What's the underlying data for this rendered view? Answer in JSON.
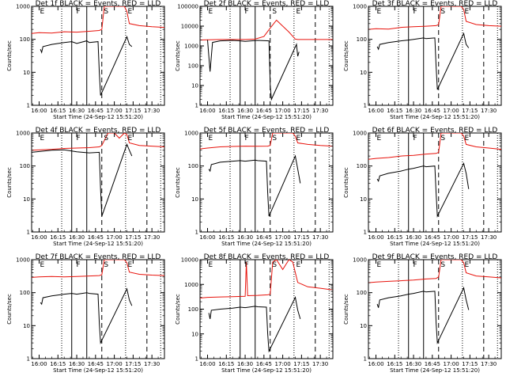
{
  "chart_data": [
    {
      "type": "line",
      "title": "Det 1f BLACK = Events, RED = LLD",
      "xlabel": "Start Time (24-Sep-12 15:51:20)",
      "ylabel": "Counts/sec",
      "y_scale": "log",
      "ylim": [
        1,
        1000
      ],
      "yticks": [
        1,
        10,
        100,
        1000
      ],
      "xticks": [
        "16:00",
        "16:15",
        "16:30",
        "16:45",
        "17:00",
        "17:15",
        "17:30"
      ],
      "xlim_min": [
        -6,
        100
      ],
      "dotted_x": [
        18,
        69,
        97
      ],
      "solid_x": [
        26,
        38
      ],
      "dashed_x": [
        50,
        86
      ],
      "segment_labels": [
        {
          "text": "E",
          "x": 0
        },
        {
          "text": "F",
          "x": 29
        },
        {
          "text": "S",
          "x": 51
        },
        {
          "text": "E",
          "x": 70
        }
      ],
      "series": [
        {
          "color": "red",
          "x": [
            -6,
            0,
            10,
            20,
            30,
            40,
            48,
            50,
            52,
            68,
            70,
            72,
            80,
            90,
            100
          ],
          "y": [
            150,
            160,
            155,
            170,
            165,
            175,
            185,
            200,
            1000,
            1000,
            700,
            300,
            260,
            240,
            230
          ]
        },
        {
          "color": "black",
          "x": [
            1,
            2,
            3,
            10,
            20,
            26,
            30,
            38,
            40,
            47,
            48,
            49,
            70,
            72,
            74
          ],
          "y": [
            50,
            40,
            60,
            70,
            80,
            85,
            75,
            90,
            80,
            85,
            10,
            2,
            120,
            70,
            60
          ]
        }
      ]
    },
    {
      "type": "line",
      "title": "Det 2f BLACK = Events, RED = LLD",
      "xlabel": "Start Time (24-Sep-12 15:51:20)",
      "ylabel": "Counts/sec",
      "y_scale": "log",
      "ylim": [
        1,
        100000
      ],
      "yticks": [
        1,
        10,
        100,
        1000,
        10000,
        100000
      ],
      "xticks": [
        "16:00",
        "16:15",
        "16:30",
        "16:45",
        "17:00",
        "17:15",
        "17:30"
      ],
      "xlim_min": [
        -6,
        100
      ],
      "dotted_x": [
        18,
        69,
        97
      ],
      "solid_x": [
        26,
        38
      ],
      "dashed_x": [
        50,
        86
      ],
      "segment_labels": [
        {
          "text": "E",
          "x": 0
        },
        {
          "text": "F",
          "x": 29
        },
        {
          "text": "S",
          "x": 51
        },
        {
          "text": "E",
          "x": 70
        }
      ],
      "series": [
        {
          "color": "red",
          "x": [
            -6,
            10,
            30,
            38,
            45,
            50,
            55,
            60,
            65,
            70,
            72,
            80,
            90,
            100
          ],
          "y": [
            2000,
            2100,
            2100,
            2200,
            3000,
            8000,
            20000,
            10000,
            5000,
            2200,
            2100,
            2100,
            2100,
            2100
          ]
        },
        {
          "color": "black",
          "x": [
            0,
            2,
            4,
            10,
            20,
            26,
            30,
            40,
            49,
            50,
            51,
            71,
            72,
            73
          ],
          "y": [
            2000,
            50,
            1500,
            1800,
            1900,
            1800,
            1700,
            1900,
            1800,
            10,
            2,
            1200,
            300,
            500
          ]
        }
      ]
    },
    {
      "type": "line",
      "title": "Det 3f BLACK = Events, RED = LLD",
      "xlabel": "Start Time (24-Sep-12 15:51:20)",
      "ylabel": "Counts/sec",
      "y_scale": "log",
      "ylim": [
        1,
        1000
      ],
      "yticks": [
        1,
        10,
        100,
        1000
      ],
      "xticks": [
        "16:00",
        "16:15",
        "16:30",
        "16:45",
        "17:00",
        "17:15",
        "17:30"
      ],
      "xlim_min": [
        -6,
        100
      ],
      "dotted_x": [
        18,
        69,
        97
      ],
      "solid_x": [
        26,
        38
      ],
      "dashed_x": [
        50,
        86
      ],
      "segment_labels": [
        {
          "text": "E",
          "x": 0
        },
        {
          "text": "F",
          "x": 29
        },
        {
          "text": "S",
          "x": 51
        },
        {
          "text": "E",
          "x": 70
        }
      ],
      "series": [
        {
          "color": "red",
          "x": [
            -6,
            0,
            10,
            20,
            30,
            40,
            48,
            50,
            52,
            68,
            70,
            72,
            80,
            90,
            100
          ],
          "y": [
            200,
            210,
            205,
            230,
            240,
            250,
            260,
            280,
            1000,
            1000,
            800,
            350,
            280,
            260,
            250
          ]
        },
        {
          "color": "black",
          "x": [
            1,
            2,
            3,
            10,
            20,
            26,
            30,
            38,
            40,
            47,
            48,
            49,
            70,
            72,
            74
          ],
          "y": [
            60,
            50,
            70,
            80,
            90,
            95,
            100,
            110,
            105,
            110,
            15,
            3,
            150,
            70,
            55
          ]
        }
      ]
    },
    {
      "type": "line",
      "title": "Det 4f BLACK = Events, RED = LLD",
      "xlabel": "Start Time (24-Sep-12 15:51:20)",
      "ylabel": "Counts/sec",
      "y_scale": "log",
      "ylim": [
        1,
        1000
      ],
      "yticks": [
        1,
        10,
        100,
        1000
      ],
      "xticks": [
        "16:00",
        "16:15",
        "16:30",
        "16:45",
        "17:00",
        "17:15",
        "17:30"
      ],
      "xlim_min": [
        -6,
        100
      ],
      "dotted_x": [
        18,
        69,
        97
      ],
      "solid_x": [
        26,
        38
      ],
      "dashed_x": [
        50,
        86
      ],
      "segment_labels": [
        {
          "text": "E",
          "x": 0
        },
        {
          "text": "F",
          "x": 29
        },
        {
          "text": "S",
          "x": 51
        },
        {
          "text": "E",
          "x": 70
        }
      ],
      "series": [
        {
          "color": "red",
          "x": [
            -6,
            10,
            20,
            30,
            40,
            48,
            50,
            55,
            60,
            64,
            68,
            70,
            72,
            80,
            90,
            100
          ],
          "y": [
            300,
            320,
            340,
            350,
            360,
            380,
            420,
            1000,
            1000,
            700,
            1000,
            900,
            500,
            420,
            400,
            380
          ]
        },
        {
          "color": "black",
          "x": [
            -6,
            10,
            20,
            30,
            40,
            48,
            49,
            50,
            70,
            72,
            74
          ],
          "y": [
            260,
            300,
            310,
            270,
            250,
            260,
            20,
            3,
            450,
            300,
            200
          ]
        }
      ]
    },
    {
      "type": "line",
      "title": "Det 5f BLACK = Events, RED = LLD",
      "xlabel": "Start Time (24-Sep-12 15:51:20)",
      "ylabel": "Counts/sec",
      "y_scale": "log",
      "ylim": [
        1,
        1000
      ],
      "yticks": [
        1,
        10,
        100,
        1000
      ],
      "xticks": [
        "16:00",
        "16:15",
        "16:30",
        "16:45",
        "17:00",
        "17:15",
        "17:30"
      ],
      "xlim_min": [
        -6,
        100
      ],
      "dotted_x": [
        18,
        69,
        97
      ],
      "solid_x": [
        26,
        38
      ],
      "dashed_x": [
        50,
        86
      ],
      "segment_labels": [
        {
          "text": "E",
          "x": 0
        },
        {
          "text": "F",
          "x": 29
        },
        {
          "text": "S",
          "x": 51
        },
        {
          "text": "E",
          "x": 70
        }
      ],
      "series": [
        {
          "color": "red",
          "x": [
            -6,
            0,
            10,
            20,
            30,
            40,
            48,
            50,
            52,
            68,
            70,
            72,
            80,
            90,
            100
          ],
          "y": [
            330,
            350,
            380,
            390,
            400,
            395,
            400,
            420,
            1000,
            1000,
            800,
            500,
            450,
            420,
            400
          ]
        },
        {
          "color": "black",
          "x": [
            1,
            2,
            3,
            10,
            20,
            26,
            30,
            38,
            40,
            47,
            48,
            49,
            70,
            72,
            74
          ],
          "y": [
            80,
            70,
            110,
            130,
            140,
            145,
            140,
            150,
            145,
            140,
            15,
            3,
            200,
            80,
            30
          ]
        }
      ]
    },
    {
      "type": "line",
      "title": "Det 6f BLACK = Events, RED = LLD",
      "xlabel": "Start Time (24-Sep-12 15:51:20)",
      "ylabel": "Counts/sec",
      "y_scale": "log",
      "ylim": [
        1,
        1000
      ],
      "yticks": [
        1,
        10,
        100,
        1000
      ],
      "xticks": [
        "16:00",
        "16:15",
        "16:30",
        "16:45",
        "17:00",
        "17:15",
        "17:30"
      ],
      "xlim_min": [
        -6,
        100
      ],
      "dotted_x": [
        18,
        69,
        97
      ],
      "solid_x": [
        26,
        38
      ],
      "dashed_x": [
        50,
        86
      ],
      "segment_labels": [
        {
          "text": "E",
          "x": 0
        },
        {
          "text": "F",
          "x": 29
        },
        {
          "text": "S",
          "x": 51
        },
        {
          "text": "E",
          "x": 70
        }
      ],
      "series": [
        {
          "color": "red",
          "x": [
            -6,
            0,
            10,
            20,
            30,
            40,
            48,
            50,
            52,
            68,
            70,
            72,
            80,
            90,
            100
          ],
          "y": [
            160,
            170,
            180,
            200,
            210,
            230,
            240,
            260,
            1000,
            1000,
            800,
            450,
            380,
            350,
            320
          ]
        },
        {
          "color": "black",
          "x": [
            1,
            2,
            3,
            10,
            20,
            26,
            30,
            38,
            40,
            47,
            48,
            49,
            70,
            72,
            74
          ],
          "y": [
            40,
            35,
            50,
            60,
            70,
            80,
            85,
            100,
            95,
            100,
            15,
            3,
            120,
            60,
            20
          ]
        }
      ]
    },
    {
      "type": "line",
      "title": "Det 7f BLACK = Events, RED = LLD",
      "xlabel": "Start Time (24-Sep-12 15:51:20)",
      "ylabel": "Counts/sec",
      "y_scale": "log",
      "ylim": [
        1,
        1000
      ],
      "yticks": [
        1,
        10,
        100,
        1000
      ],
      "xticks": [
        "16:00",
        "16:15",
        "16:30",
        "16:45",
        "17:00",
        "17:15",
        "17:30"
      ],
      "xlim_min": [
        -6,
        100
      ],
      "dotted_x": [
        18,
        69,
        97
      ],
      "solid_x": [
        26,
        38
      ],
      "dashed_x": [
        50,
        86
      ],
      "segment_labels": [
        {
          "text": "E",
          "x": 0
        },
        {
          "text": "F",
          "x": 29
        },
        {
          "text": "S",
          "x": 51
        },
        {
          "text": "E",
          "x": 70
        }
      ],
      "series": [
        {
          "color": "red",
          "x": [
            -6,
            0,
            10,
            20,
            30,
            40,
            48,
            50,
            52,
            68,
            70,
            72,
            80,
            90,
            100
          ],
          "y": [
            290,
            300,
            310,
            300,
            310,
            320,
            330,
            350,
            1000,
            1000,
            800,
            420,
            360,
            340,
            330
          ]
        },
        {
          "color": "black",
          "x": [
            1,
            2,
            3,
            10,
            20,
            26,
            30,
            38,
            40,
            47,
            48,
            49,
            70,
            72,
            74
          ],
          "y": [
            50,
            45,
            70,
            80,
            90,
            95,
            90,
            100,
            95,
            90,
            12,
            3,
            130,
            60,
            40
          ]
        }
      ]
    },
    {
      "type": "line",
      "title": "Det 8f BLACK = Events, RED = LLD",
      "xlabel": "Start Time (24-Sep-12 15:51:20)",
      "ylabel": "Counts/sec",
      "y_scale": "log",
      "ylim": [
        1,
        10000
      ],
      "yticks": [
        1,
        10,
        100,
        1000,
        10000
      ],
      "xticks": [
        "16:00",
        "16:15",
        "16:30",
        "16:45",
        "17:00",
        "17:15",
        "17:30"
      ],
      "xlim_min": [
        -6,
        100
      ],
      "dotted_x": [
        18,
        69,
        97
      ],
      "solid_x": [
        26,
        38
      ],
      "dashed_x": [
        50,
        86
      ],
      "segment_labels": [
        {
          "text": "E",
          "x": 0
        },
        {
          "text": "F",
          "x": 29
        },
        {
          "text": "S",
          "x": 51
        },
        {
          "text": "E",
          "x": 70
        }
      ],
      "series": [
        {
          "color": "red",
          "x": [
            -6,
            0,
            10,
            20,
            30,
            31,
            32,
            40,
            48,
            50,
            52,
            55,
            60,
            65,
            68,
            70,
            72,
            80,
            90,
            100
          ],
          "y": [
            280,
            300,
            310,
            320,
            330,
            8000,
            350,
            360,
            380,
            400,
            8000,
            10000,
            4000,
            10000,
            8000,
            3000,
            1200,
            800,
            700,
            600
          ]
        },
        {
          "color": "black",
          "x": [
            1,
            2,
            3,
            10,
            20,
            26,
            30,
            38,
            40,
            47,
            48,
            49,
            70,
            72,
            74
          ],
          "y": [
            70,
            40,
            90,
            100,
            110,
            120,
            115,
            130,
            125,
            120,
            10,
            2,
            300,
            90,
            40
          ]
        }
      ]
    },
    {
      "type": "line",
      "title": "Det 9f BLACK = Events, RED = LLD",
      "xlabel": "Start Time (24-Sep-12 15:51:20)",
      "ylabel": "Counts/sec",
      "y_scale": "log",
      "ylim": [
        1,
        1000
      ],
      "yticks": [
        1,
        10,
        100,
        1000
      ],
      "xticks": [
        "16:00",
        "16:15",
        "16:30",
        "16:45",
        "17:00",
        "17:15",
        "17:30"
      ],
      "xlim_min": [
        -6,
        100
      ],
      "dotted_x": [
        18,
        69,
        97
      ],
      "solid_x": [
        26,
        38
      ],
      "dashed_x": [
        50,
        86
      ],
      "segment_labels": [
        {
          "text": "E",
          "x": 0
        },
        {
          "text": "F",
          "x": 29
        },
        {
          "text": "S",
          "x": 51
        },
        {
          "text": "E",
          "x": 70
        }
      ],
      "series": [
        {
          "color": "red",
          "x": [
            -6,
            0,
            10,
            20,
            30,
            40,
            48,
            50,
            52,
            68,
            70,
            72,
            80,
            90,
            100
          ],
          "y": [
            200,
            210,
            220,
            230,
            240,
            260,
            270,
            300,
            1000,
            1000,
            800,
            400,
            320,
            300,
            280
          ]
        },
        {
          "color": "black",
          "x": [
            1,
            2,
            3,
            10,
            20,
            26,
            30,
            38,
            40,
            47,
            48,
            49,
            70,
            72,
            74
          ],
          "y": [
            45,
            35,
            60,
            70,
            80,
            90,
            95,
            110,
            105,
            110,
            12,
            3,
            140,
            60,
            30
          ]
        }
      ]
    }
  ]
}
